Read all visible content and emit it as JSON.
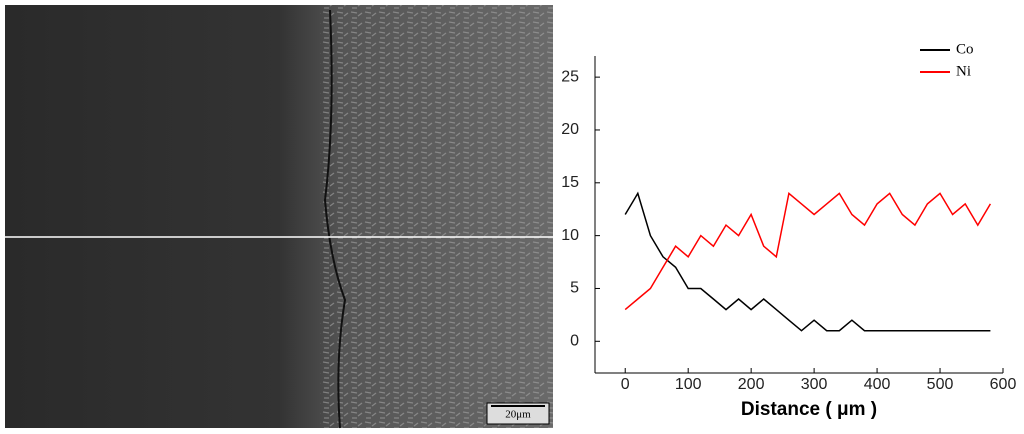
{
  "image": {
    "scale_label": "20μm"
  },
  "chart_data": {
    "type": "line",
    "x_label": "Distance ( μm )",
    "x": [
      0,
      20,
      40,
      60,
      80,
      100,
      120,
      140,
      160,
      180,
      200,
      220,
      240,
      260,
      280,
      300,
      320,
      340,
      360,
      380,
      400,
      420,
      440,
      460,
      480,
      500,
      520,
      540,
      560,
      580
    ],
    "series": [
      {
        "name": "Co",
        "color": "#000000",
        "values": [
          12,
          14,
          10,
          8,
          7,
          5,
          5,
          4,
          3,
          4,
          3,
          4,
          3,
          2,
          1,
          2,
          1,
          1,
          2,
          1,
          1,
          1,
          1,
          1,
          1,
          1,
          1,
          1,
          1,
          1
        ]
      },
      {
        "name": "Ni",
        "color": "#ff0000",
        "values": [
          3,
          4,
          5,
          7,
          9,
          8,
          10,
          9,
          11,
          10,
          12,
          9,
          8,
          14,
          13,
          12,
          13,
          14,
          12,
          11,
          13,
          14,
          12,
          11,
          13,
          14,
          12,
          13,
          11,
          13
        ]
      }
    ],
    "xlim": [
      -48,
      600
    ],
    "xticks": [
      0,
      100,
      200,
      300,
      400,
      500,
      600
    ],
    "ylim": [
      -3,
      27
    ],
    "yticks": [
      0,
      5,
      10,
      15,
      20,
      25
    ],
    "legend": "top-right"
  }
}
